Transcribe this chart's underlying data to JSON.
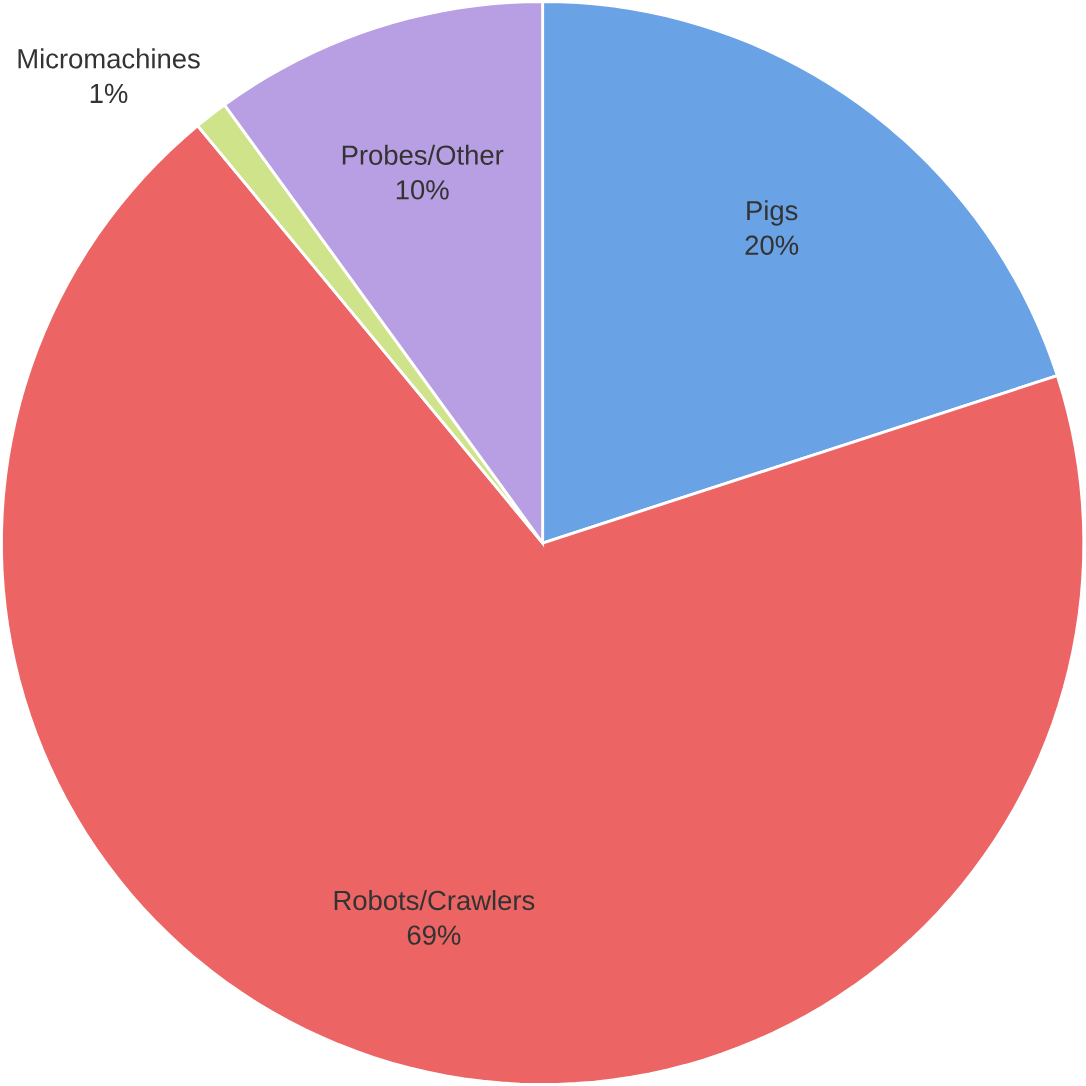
{
  "chart_data": {
    "type": "pie",
    "categories": [
      "Pigs",
      "Robots/Crawlers",
      "Micromachines",
      "Probes/Other"
    ],
    "values": [
      20,
      69,
      1,
      10
    ],
    "colors": [
      "#6aa2e6",
      "#ec6464",
      "#cfe38a",
      "#b89ee2"
    ],
    "value_labels": [
      "20%",
      "69%",
      "1%",
      "10%"
    ]
  }
}
